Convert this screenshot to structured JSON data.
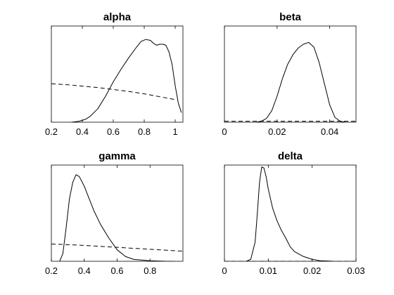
{
  "chart_data": [
    {
      "type": "line",
      "title": "alpha",
      "xlim": [
        0.2,
        1.05
      ],
      "ylim": [
        0,
        1.0
      ],
      "xticks": [
        0.2,
        0.4,
        0.6,
        0.8,
        1.0
      ],
      "xtick_labels": [
        "0.2",
        "0.4",
        "0.6",
        "0.8",
        "1"
      ],
      "series": [
        {
          "style": "solid",
          "color": "#000000",
          "x": [
            0.33,
            0.38,
            0.42,
            0.45,
            0.5,
            0.55,
            0.6,
            0.65,
            0.7,
            0.75,
            0.78,
            0.81,
            0.84,
            0.86,
            0.88,
            0.9,
            0.92,
            0.94,
            0.96,
            0.98,
            1.0,
            1.02,
            1.04
          ],
          "y": [
            0.0,
            0.01,
            0.03,
            0.06,
            0.14,
            0.27,
            0.42,
            0.55,
            0.67,
            0.78,
            0.84,
            0.86,
            0.85,
            0.82,
            0.8,
            0.81,
            0.81,
            0.8,
            0.73,
            0.6,
            0.38,
            0.2,
            0.1
          ]
        },
        {
          "style": "dashed",
          "color": "#000000",
          "x": [
            0.2,
            0.3,
            0.4,
            0.5,
            0.6,
            0.7,
            0.8,
            0.9,
            1.0
          ],
          "y": [
            0.4,
            0.39,
            0.375,
            0.36,
            0.34,
            0.32,
            0.295,
            0.265,
            0.235
          ]
        }
      ]
    },
    {
      "type": "line",
      "title": "beta",
      "xlim": [
        0.0,
        0.05
      ],
      "ylim": [
        0,
        1.0
      ],
      "xticks": [
        0,
        0.02,
        0.04
      ],
      "xtick_labels": [
        "0",
        "0.02",
        "0.04"
      ],
      "series": [
        {
          "style": "solid",
          "color": "#000000",
          "x": [
            0.012,
            0.014,
            0.016,
            0.018,
            0.02,
            0.022,
            0.024,
            0.026,
            0.028,
            0.03,
            0.032,
            0.034,
            0.036,
            0.038,
            0.04,
            0.042,
            0.044,
            0.046
          ],
          "y": [
            0.0,
            0.01,
            0.04,
            0.12,
            0.27,
            0.45,
            0.6,
            0.7,
            0.77,
            0.81,
            0.83,
            0.78,
            0.62,
            0.4,
            0.18,
            0.05,
            0.01,
            0.0
          ]
        },
        {
          "style": "dashed",
          "color": "#000000",
          "x": [
            0.0,
            0.05
          ],
          "y": [
            0.01,
            0.01
          ]
        }
      ]
    },
    {
      "type": "line",
      "title": "gamma",
      "xlim": [
        0.2,
        1.0
      ],
      "ylim": [
        0,
        1.0
      ],
      "xticks": [
        0.2,
        0.4,
        0.6,
        0.8
      ],
      "xtick_labels": [
        "0.2",
        "0.4",
        "0.6",
        "0.8"
      ],
      "series": [
        {
          "style": "solid",
          "color": "#000000",
          "x": [
            0.25,
            0.27,
            0.29,
            0.31,
            0.33,
            0.35,
            0.37,
            0.4,
            0.43,
            0.46,
            0.5,
            0.55,
            0.6,
            0.65,
            0.7,
            0.8,
            0.9,
            0.95
          ],
          "y": [
            0.0,
            0.08,
            0.35,
            0.65,
            0.82,
            0.9,
            0.88,
            0.78,
            0.65,
            0.52,
            0.38,
            0.24,
            0.12,
            0.05,
            0.02,
            0.005,
            0.0,
            0.0
          ]
        },
        {
          "style": "dashed",
          "color": "#000000",
          "x": [
            0.2,
            0.4,
            0.6,
            0.8,
            1.0
          ],
          "y": [
            0.18,
            0.165,
            0.145,
            0.125,
            0.105
          ]
        }
      ]
    },
    {
      "type": "line",
      "title": "delta",
      "xlim": [
        0.0,
        0.03
      ],
      "ylim": [
        0,
        1.0
      ],
      "xticks": [
        0,
        0.01,
        0.02,
        0.03
      ],
      "xtick_labels": [
        "0",
        "0.01",
        "0.02",
        "0.03"
      ],
      "series": [
        {
          "style": "solid",
          "color": "#000000",
          "x": [
            0.005,
            0.006,
            0.007,
            0.0075,
            0.008,
            0.0085,
            0.009,
            0.0095,
            0.01,
            0.011,
            0.012,
            0.013,
            0.014,
            0.015,
            0.016,
            0.018,
            0.02,
            0.022,
            0.025
          ],
          "y": [
            0.0,
            0.02,
            0.2,
            0.5,
            0.82,
            0.98,
            0.97,
            0.88,
            0.75,
            0.55,
            0.42,
            0.32,
            0.24,
            0.15,
            0.1,
            0.05,
            0.02,
            0.005,
            0.0
          ]
        },
        {
          "style": "dashed",
          "color": "#000000",
          "x": [
            0.0,
            0.03
          ],
          "y": [
            0.0,
            0.0
          ]
        }
      ]
    }
  ]
}
